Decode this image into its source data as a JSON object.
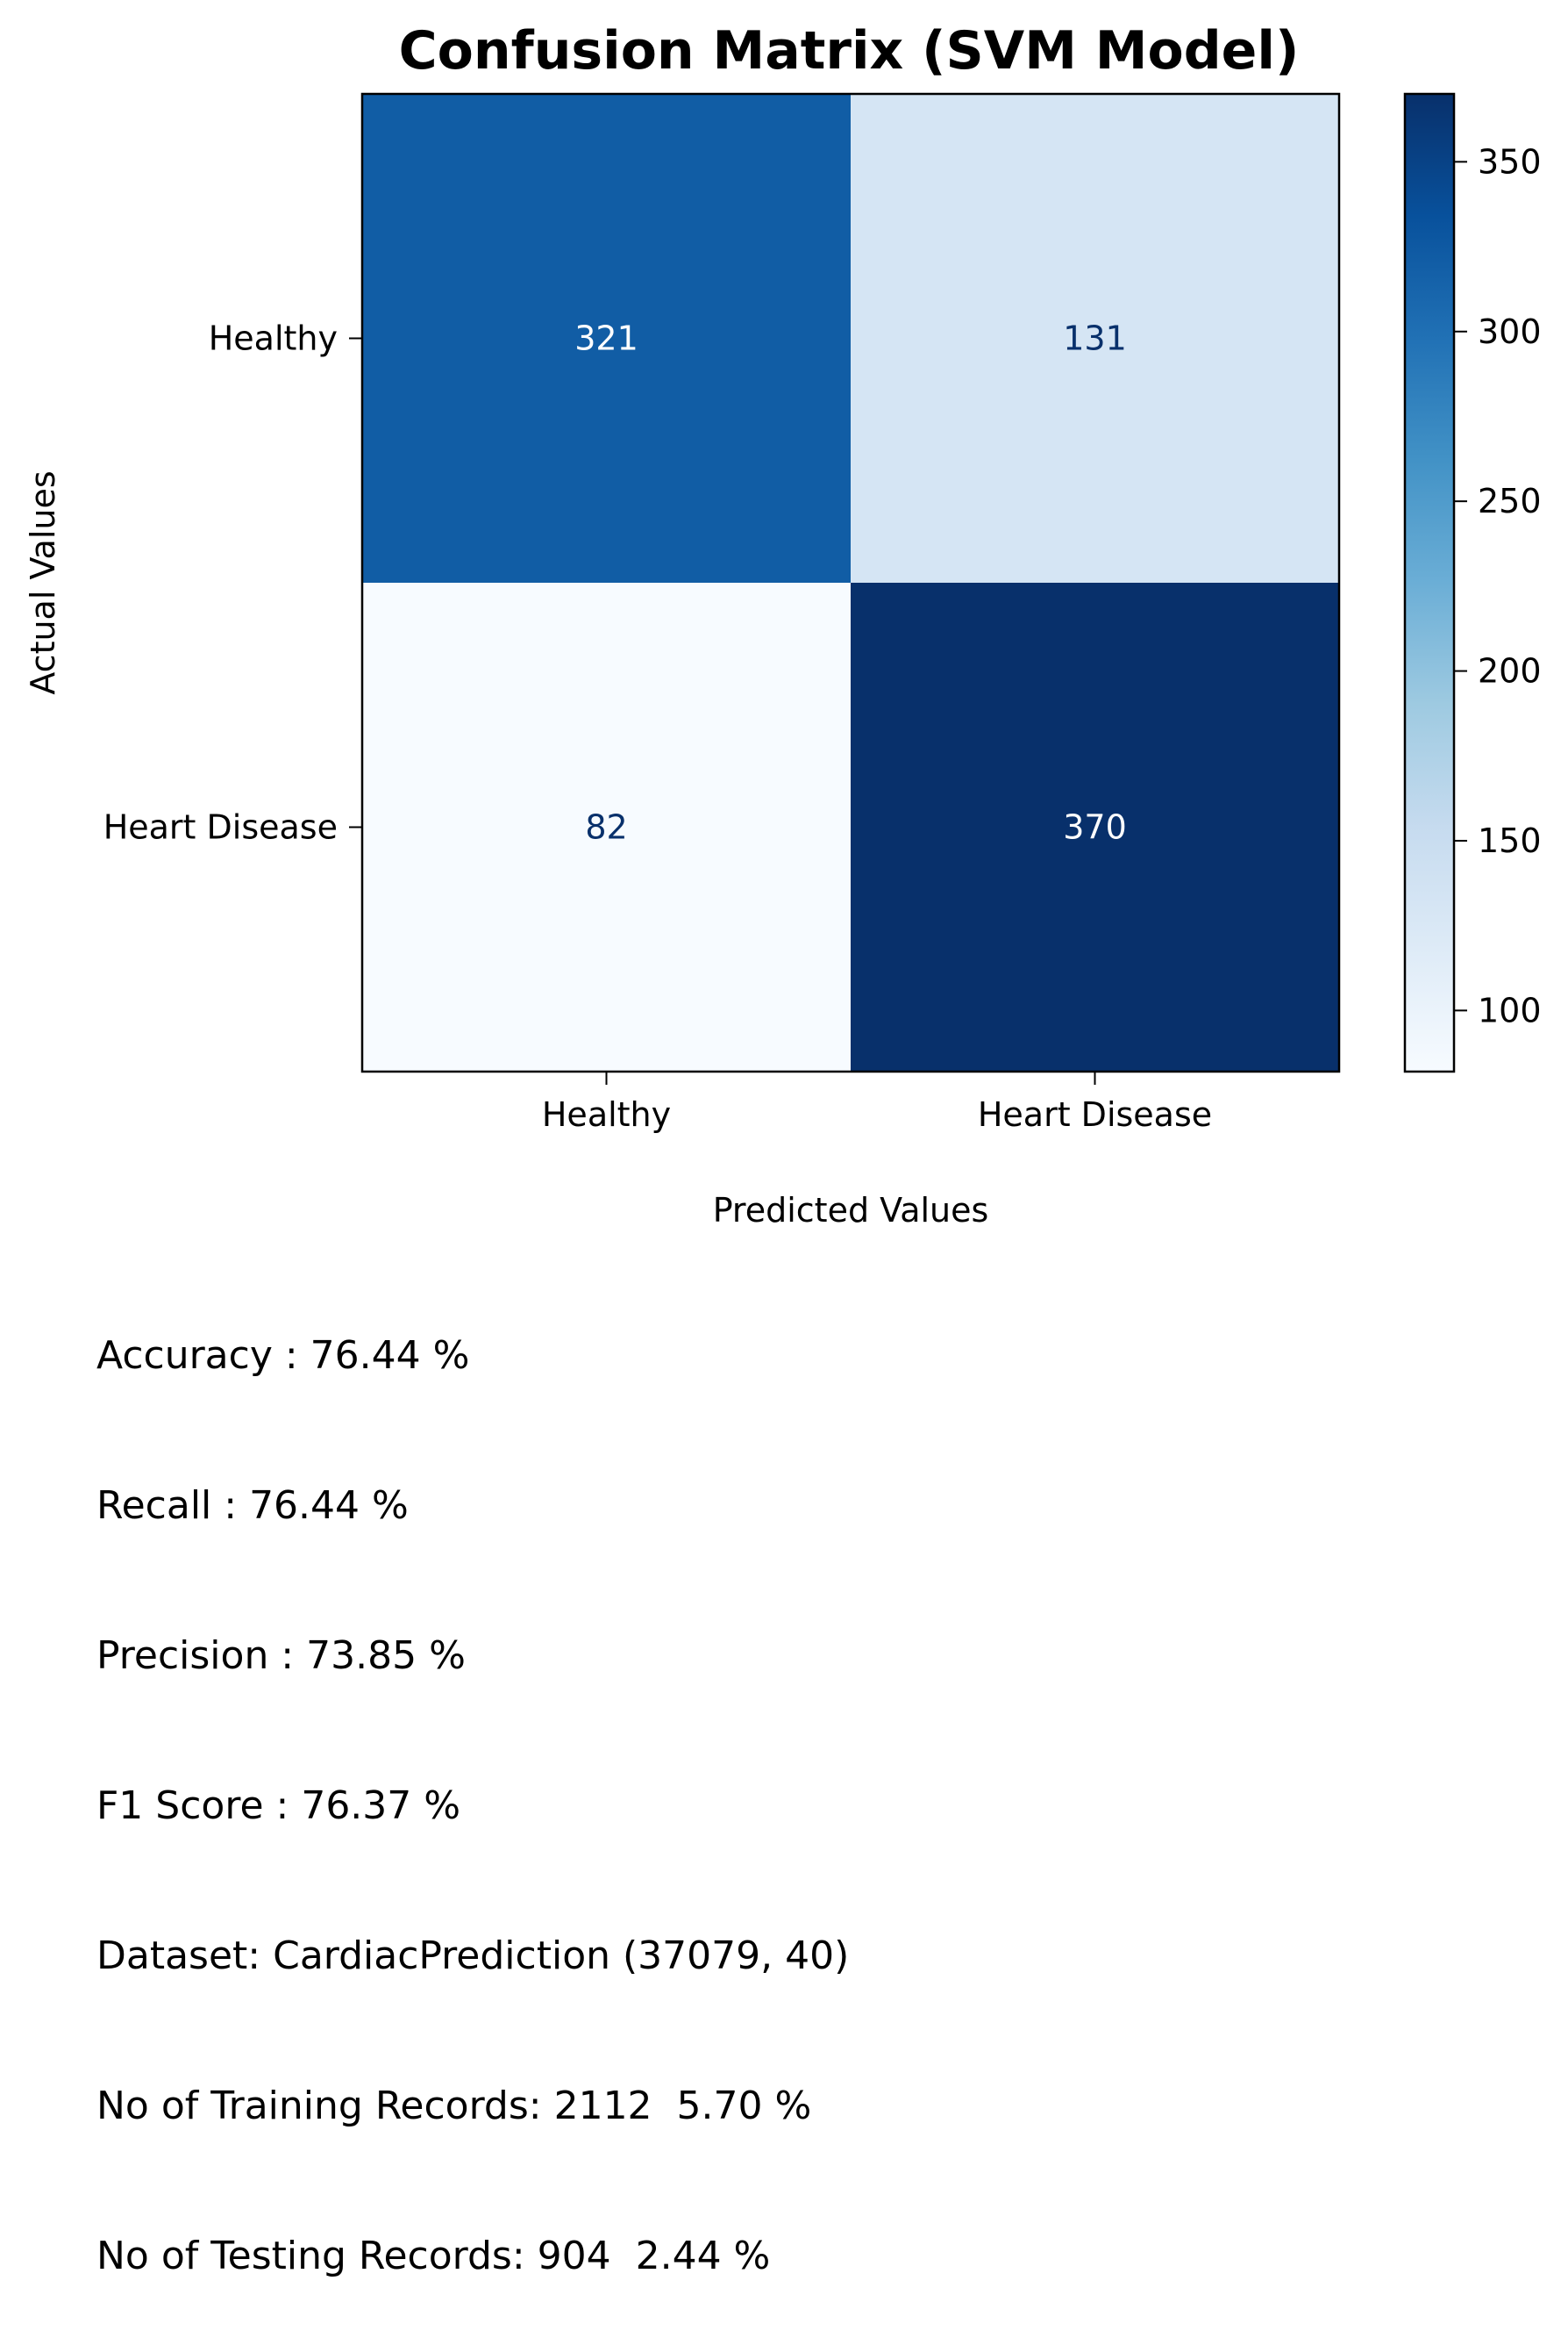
{
  "chart_data": {
    "type": "heatmap",
    "title": "Confusion Matrix (SVM Model)",
    "xlabel": "Predicted Values",
    "ylabel": "Actual Values",
    "x_categories": [
      "Healthy",
      "Heart Disease"
    ],
    "y_categories": [
      "Healthy",
      "Heart Disease"
    ],
    "matrix": [
      [
        321,
        131
      ],
      [
        82,
        370
      ]
    ],
    "colormap": "Blues",
    "colorbar": {
      "range": [
        82,
        370
      ],
      "ticks": [
        100,
        150,
        200,
        250,
        300,
        350
      ]
    },
    "grid": false
  },
  "stats": [
    "Accuracy : 76.44 %",
    "Recall : 76.44 %",
    "Precision : 73.85 %",
    "F1 Score : 76.37 %",
    "Dataset: CardiacPrediction (37079, 40)",
    "No of Training Records: 2112  5.70 %",
    "No of Testing Records: 904  2.44 %"
  ]
}
